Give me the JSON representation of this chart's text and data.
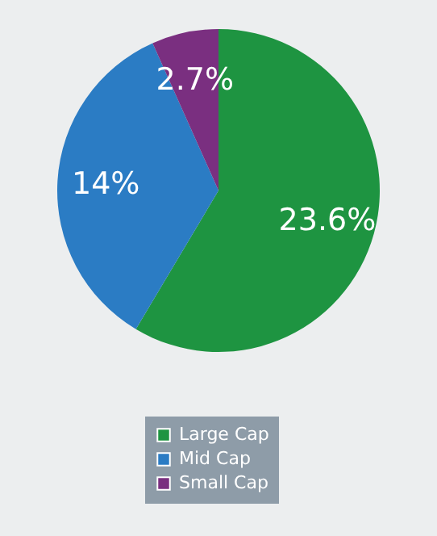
{
  "chart_data": {
    "type": "pie",
    "categories": [
      "Large Cap",
      "Mid Cap",
      "Small Cap"
    ],
    "values": [
      23.6,
      14,
      2.7
    ],
    "colors": [
      "#1e9441",
      "#2b7cc4",
      "#7a2f80"
    ],
    "value_labels": [
      "23.6%",
      "14%",
      "2.7%"
    ],
    "legend": "bottom"
  }
}
